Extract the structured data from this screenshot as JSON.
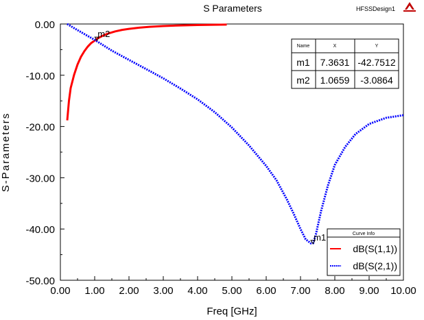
{
  "chart_data": {
    "type": "line",
    "title": "S Parameters",
    "brand": "HFSSDesign1",
    "logo_icon": "ansoft-logo-icon",
    "xlabel": "Freq [GHz]",
    "ylabel": "S-Parameters",
    "xlim": [
      0,
      10
    ],
    "ylim": [
      -50,
      0
    ],
    "xticks": [
      "0.00",
      "1.00",
      "2.00",
      "3.00",
      "4.00",
      "5.00",
      "6.00",
      "7.00",
      "8.00",
      "9.00",
      "10.00"
    ],
    "yticks": [
      "0.00",
      "-10.00",
      "-20.00",
      "-30.00",
      "-40.00",
      "-50.00"
    ],
    "grid": false,
    "series": [
      {
        "name": "dB(S(1,1))",
        "color": "#ff0000",
        "style": "solid",
        "x": [
          0.2,
          0.25,
          0.3,
          0.4,
          0.5,
          0.6,
          0.7,
          0.8,
          0.9,
          1.0,
          1.1,
          1.25,
          1.4,
          1.6,
          1.8,
          2.0,
          2.3,
          2.6,
          3.0,
          3.5,
          4.0,
          4.5,
          4.85
        ],
        "y": [
          -18.8,
          -15.0,
          -12.5,
          -9.9,
          -7.9,
          -6.4,
          -5.3,
          -4.4,
          -3.7,
          -3.25,
          -2.75,
          -2.25,
          -1.85,
          -1.45,
          -1.15,
          -0.95,
          -0.72,
          -0.55,
          -0.4,
          -0.28,
          -0.2,
          -0.15,
          -0.12
        ]
      },
      {
        "name": "dB(S(2,1))",
        "color": "#0000ff",
        "style": "dotted",
        "x": [
          0.2,
          0.5,
          1.0,
          1.5,
          2.0,
          2.5,
          3.0,
          3.5,
          4.0,
          4.5,
          5.0,
          5.5,
          6.0,
          6.3,
          6.6,
          6.8,
          7.0,
          7.15,
          7.3,
          7.37,
          7.45,
          7.6,
          7.8,
          8.0,
          8.3,
          8.6,
          9.0,
          9.5,
          10.0
        ],
        "y": [
          0.0,
          -1.2,
          -3.1,
          -5.2,
          -7.0,
          -8.8,
          -10.6,
          -12.6,
          -14.7,
          -17.2,
          -20.2,
          -23.7,
          -27.7,
          -30.5,
          -34.2,
          -37.0,
          -40.0,
          -42.0,
          -42.8,
          -42.75,
          -41.0,
          -36.5,
          -31.5,
          -27.5,
          -24.0,
          -21.5,
          -19.5,
          -18.3,
          -17.8
        ]
      }
    ],
    "markers": [
      {
        "name": "m1",
        "x": 7.3631,
        "y": -42.7512
      },
      {
        "name": "m2",
        "x": 1.0659,
        "y": -3.0864
      }
    ],
    "marker_table": {
      "headers": [
        "Name",
        "X",
        "Y"
      ],
      "rows": [
        [
          "m1",
          "7.3631",
          "-42.7512"
        ],
        [
          "m2",
          "1.0659",
          "-3.0864"
        ]
      ],
      "placement": "top-right"
    },
    "legend": {
      "title": "Curve Info",
      "placement": "bottom-right",
      "entries": [
        "dB(S(1,1))",
        "dB(S(2,1))"
      ]
    }
  }
}
